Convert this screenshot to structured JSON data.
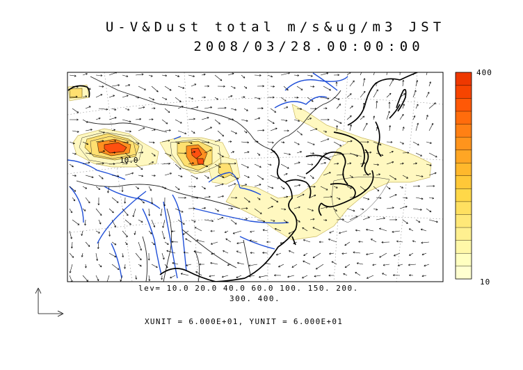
{
  "title": {
    "line1": "U-V&Dust total m/s&ug/m3 JST",
    "line2": "2008/03/28.00:00:00"
  },
  "contour_label": "10.0",
  "levels": {
    "line1": "lev= 10.0 20.0 40.0 60.0 100. 150. 200.",
    "line2": "300. 400."
  },
  "colorbar": {
    "max_label": "400",
    "min_label": "10",
    "colors": [
      "#FFFFD0",
      "#FFFFC0",
      "#FFF8A8",
      "#FFF090",
      "#FFE878",
      "#FFE060",
      "#FFD848",
      "#FFC838",
      "#FFB82C",
      "#FFA624",
      "#FF941C",
      "#FF8014",
      "#FF6C0C",
      "#FF5806",
      "#F74400",
      "#EE3800"
    ]
  },
  "units": {
    "text": "XUNIT = 6.000E+01, YUNIT = 6.000E+01"
  },
  "colors": {
    "dust_low": "#FFF8C0",
    "dust_mid": "#FFE070",
    "dust_high": "#FF9020",
    "dust_peak": "#FF5010",
    "river": "#1f4fd8",
    "coast": "#000000",
    "border": "#222222"
  }
}
